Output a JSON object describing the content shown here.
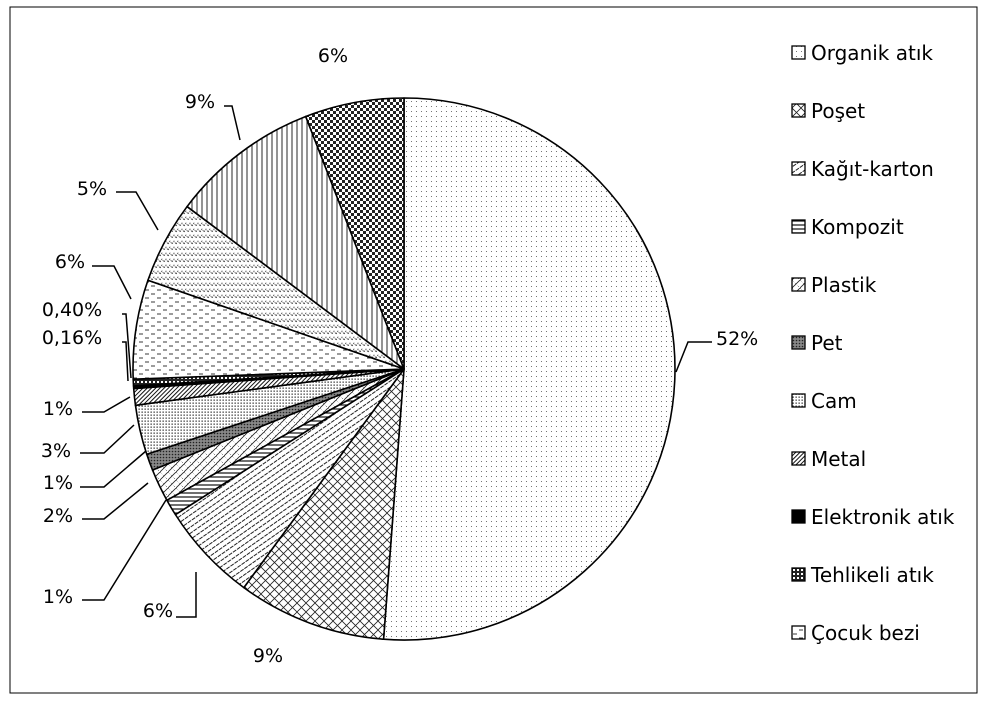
{
  "chart_data": {
    "type": "pie",
    "title": "",
    "legend_position": "right",
    "slices": [
      {
        "name": "Organik atık",
        "value": 52,
        "label": "52%",
        "pattern": "dots-fine"
      },
      {
        "name": "Poşet",
        "value": 9,
        "label": "9%",
        "pattern": "crosshatch"
      },
      {
        "name": "Kağıt-karton",
        "value": 6,
        "label": "6%",
        "pattern": "diagonal-dense"
      },
      {
        "name": "Kompozit",
        "value": 1,
        "label": "1%",
        "pattern": "horizontal-lines"
      },
      {
        "name": "Plastik",
        "value": 2,
        "label": "2%",
        "pattern": "diagonal-cross"
      },
      {
        "name": "Pet",
        "value": 1,
        "label": "1%",
        "pattern": "dark-dots"
      },
      {
        "name": "Cam",
        "value": 3,
        "label": "3%",
        "pattern": "grid-dots"
      },
      {
        "name": "Metal",
        "value": 1,
        "label": "1%",
        "pattern": "diagonal-dark"
      },
      {
        "name": "Elektronik atık",
        "value": 0.16,
        "label": "0,16%",
        "pattern": "solid-black"
      },
      {
        "name": "Tehlikeli atık",
        "value": 0.4,
        "label": "0,40%",
        "pattern": "dot-box"
      },
      {
        "name": "Çocuk bezi",
        "value": 6,
        "label": "6%",
        "pattern": "dashes"
      },
      {
        "name": "",
        "value": 5,
        "label": "5%",
        "pattern": "zigzag"
      },
      {
        "name": "",
        "value": 9,
        "label": "9%",
        "pattern": "vertical-lines"
      },
      {
        "name": "",
        "value": 6,
        "label": "6%",
        "pattern": "checker"
      }
    ]
  }
}
